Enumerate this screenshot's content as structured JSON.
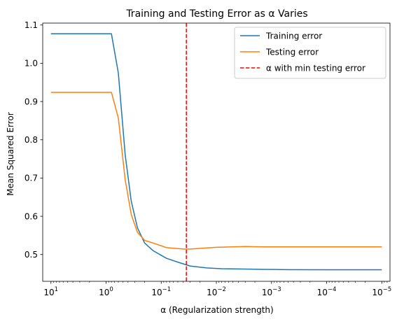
{
  "chart_data": {
    "type": "line",
    "title": "Training and Testing Error as α Varies",
    "xlabel": "α (Regularization strength)",
    "ylabel": "Mean Squared Error",
    "x_scale": "log",
    "x_inverted": true,
    "xlim": [
      14.1,
      7.1e-06
    ],
    "ylim": [
      0.43,
      1.105
    ],
    "x_ticks": [
      {
        "value": 10,
        "base": "10",
        "exp": "1"
      },
      {
        "value": 1,
        "base": "10",
        "exp": "0"
      },
      {
        "value": 0.1,
        "base": "10",
        "exp": "−1"
      },
      {
        "value": 0.01,
        "base": "10",
        "exp": "−2"
      },
      {
        "value": 0.001,
        "base": "10",
        "exp": "−3"
      },
      {
        "value": 0.0001,
        "base": "10",
        "exp": "−4"
      },
      {
        "value": 1e-05,
        "base": "10",
        "exp": "−5"
      }
    ],
    "y_ticks": [
      0.5,
      0.6,
      0.7,
      0.8,
      0.9,
      1.0,
      1.1
    ],
    "y_tick_labels": [
      "0.5",
      "0.6",
      "0.7",
      "0.8",
      "0.9",
      "1.0",
      "1.1"
    ],
    "grid": false,
    "legend_position": "top-right",
    "series": [
      {
        "name": "Training error",
        "color": "#1f77b4",
        "points": [
          [
            10,
            1.077
          ],
          [
            0.8,
            1.077
          ],
          [
            0.6,
            0.975
          ],
          [
            0.45,
            0.76
          ],
          [
            0.35,
            0.64
          ],
          [
            0.27,
            0.57
          ],
          [
            0.2,
            0.53
          ],
          [
            0.14,
            0.51
          ],
          [
            0.08,
            0.49
          ],
          [
            0.045,
            0.478
          ],
          [
            0.03,
            0.47
          ],
          [
            0.02,
            0.467
          ],
          [
            0.015,
            0.465
          ],
          [
            0.008,
            0.463
          ],
          [
            0.003,
            0.462
          ],
          [
            0.001,
            0.461
          ],
          [
            0.0005,
            0.4605
          ],
          [
            0.0001,
            0.4603
          ],
          [
            1e-05,
            0.4602
          ]
        ]
      },
      {
        "name": "Testing error",
        "color": "#ff7f0e",
        "points": [
          [
            10,
            0.924
          ],
          [
            0.8,
            0.924
          ],
          [
            0.6,
            0.857
          ],
          [
            0.45,
            0.695
          ],
          [
            0.35,
            0.605
          ],
          [
            0.27,
            0.558
          ],
          [
            0.2,
            0.537
          ],
          [
            0.14,
            0.53
          ],
          [
            0.08,
            0.518
          ],
          [
            0.045,
            0.515
          ],
          [
            0.035,
            0.514
          ],
          [
            0.025,
            0.515
          ],
          [
            0.01,
            0.519
          ],
          [
            0.005,
            0.52
          ],
          [
            0.003,
            0.521
          ],
          [
            0.0015,
            0.52
          ],
          [
            0.0005,
            0.52
          ],
          [
            0.0001,
            0.52
          ],
          [
            1e-05,
            0.52
          ]
        ]
      }
    ],
    "reference_line": {
      "name": "α with min testing error",
      "orientation": "vertical",
      "x": 0.035,
      "color": "#ff0000",
      "style": "dashed"
    }
  }
}
